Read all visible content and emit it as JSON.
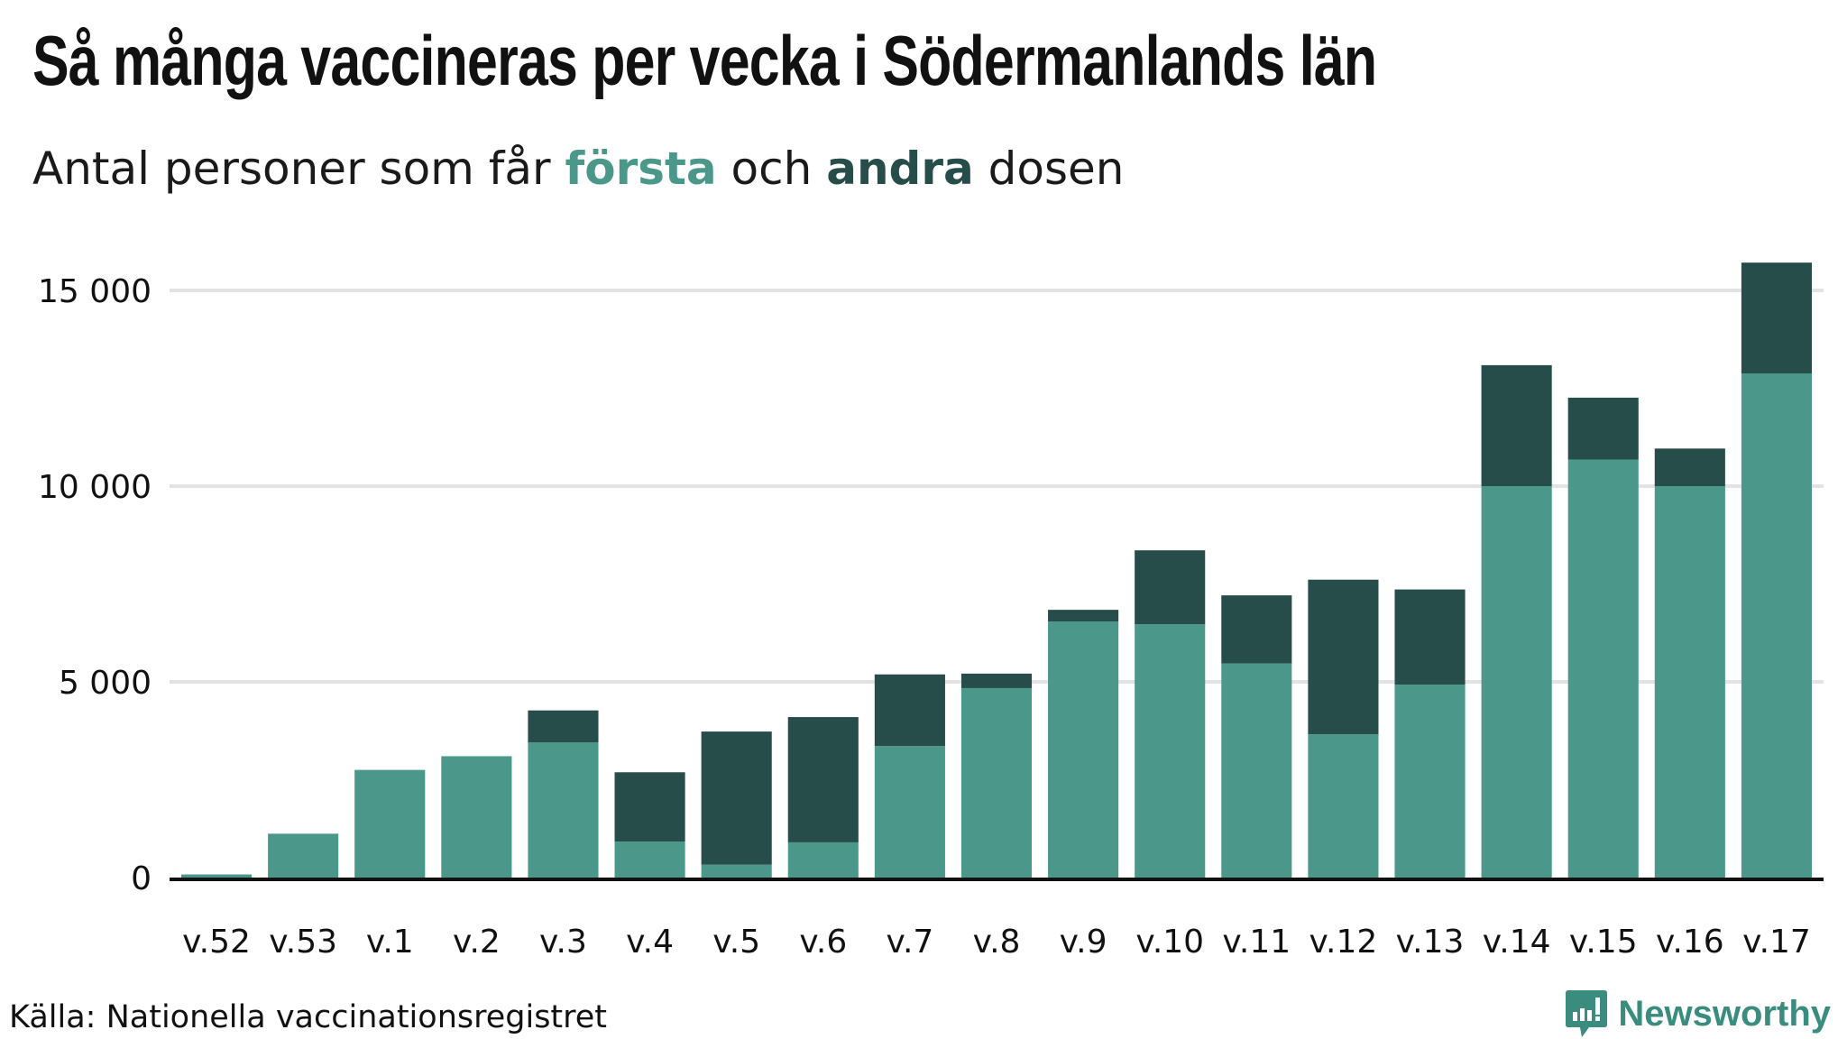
{
  "header": {
    "title": "Så många vaccineras per vecka i Södermanlands län",
    "subtitle_prefix": "Antal personer som får ",
    "subtitle_first": "första",
    "subtitle_mid": " och ",
    "subtitle_second": "andra",
    "subtitle_suffix": " dosen"
  },
  "footer": {
    "source": "Källa: Nationella vaccinationsregistret",
    "logo_text": "Newsworthy"
  },
  "colors": {
    "first": "#4b978a",
    "second": "#274d4a",
    "grid": "#e3e3e6",
    "axis": "#111111"
  },
  "chart_data": {
    "type": "bar",
    "stacked": true,
    "title": "Så många vaccineras per vecka i Södermanlands län",
    "subtitle": "Antal personer som får första och andra dosen",
    "xlabel": "",
    "ylabel": "",
    "ylim": [
      0,
      16000
    ],
    "yticks": [
      0,
      5000,
      10000,
      15000
    ],
    "ytick_labels": [
      "0",
      "5 000",
      "10 000",
      "15 000"
    ],
    "grid": true,
    "categories": [
      "v.52",
      "v.53",
      "v.1",
      "v.2",
      "v.3",
      "v.4",
      "v.5",
      "v.6",
      "v.7",
      "v.8",
      "v.9",
      "v.10",
      "v.11",
      "v.12",
      "v.13",
      "v.14",
      "v.15",
      "v.16",
      "v.17"
    ],
    "series": [
      {
        "name": "första",
        "values": [
          80,
          1120,
          2750,
          3100,
          3450,
          920,
          330,
          900,
          3360,
          4840,
          6540,
          6470,
          5470,
          3660,
          4930,
          10000,
          10680,
          10000,
          12880
        ]
      },
      {
        "name": "andra",
        "values": [
          0,
          0,
          0,
          0,
          820,
          1770,
          3400,
          3200,
          1830,
          370,
          300,
          1890,
          1740,
          3950,
          2430,
          3090,
          1580,
          960,
          2830
        ]
      }
    ]
  }
}
